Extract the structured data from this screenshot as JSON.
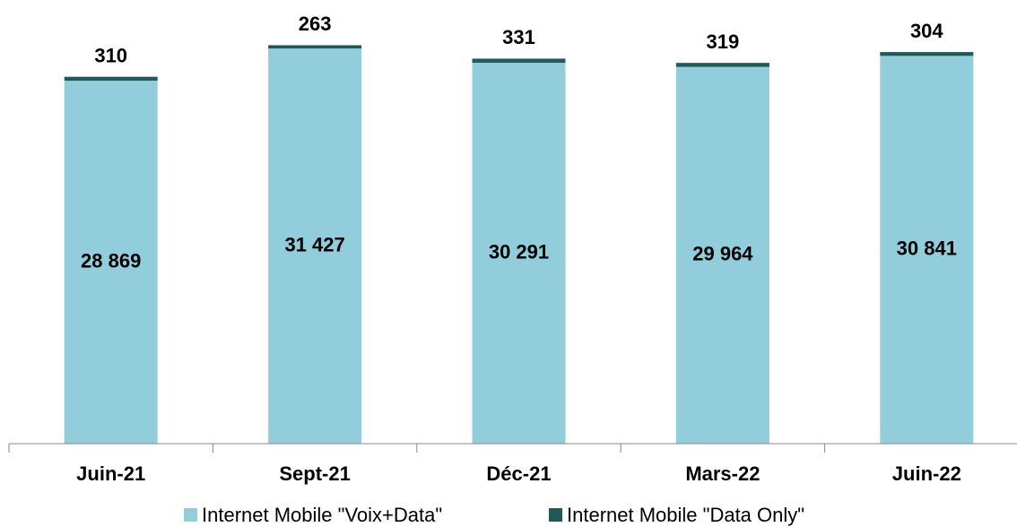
{
  "chart_data": {
    "type": "stacked_bar",
    "categories": [
      "Juin-21",
      "Sept-21",
      "Déc-21",
      "Mars-22",
      "Juin-22"
    ],
    "series": [
      {
        "name": "Internet Mobile \"Voix+Data\"",
        "color": "#92cddc",
        "values": [
          28869,
          31427,
          30291,
          29964,
          30841
        ],
        "value_labels": [
          "28 869",
          "31 427",
          "30 291",
          "29 964",
          "30 841"
        ]
      },
      {
        "name": "Internet Mobile \"Data Only\"",
        "color": "#215a58",
        "values": [
          310,
          263,
          331,
          319,
          304
        ]
      }
    ],
    "ylim": [
      0,
      35000
    ]
  }
}
